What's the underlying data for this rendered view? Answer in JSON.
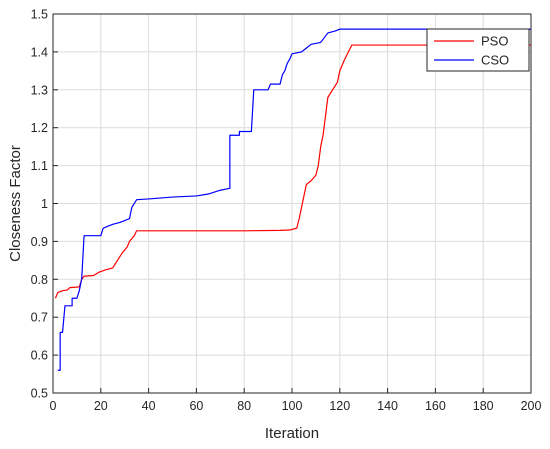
{
  "chart_data": {
    "type": "line",
    "title": "",
    "xlabel": "Iteration",
    "ylabel": "Closeness Factor",
    "xlim": [
      0,
      200
    ],
    "ylim": [
      0.5,
      1.5
    ],
    "xticks": [
      0,
      20,
      40,
      60,
      80,
      100,
      120,
      140,
      160,
      180,
      200
    ],
    "yticks": [
      0.5,
      0.6,
      0.7,
      0.8,
      0.9,
      1,
      1.1,
      1.2,
      1.3,
      1.4,
      1.5
    ],
    "xtick_labels": [
      "0",
      "20",
      "40",
      "60",
      "80",
      "100",
      "120",
      "140",
      "160",
      "180",
      "200"
    ],
    "ytick_labels": [
      "0.5",
      "0.6",
      "0.7",
      "0.8",
      "0.9",
      "1",
      "1.1",
      "1.2",
      "1.3",
      "1.4",
      "1.5"
    ],
    "grid": true,
    "legend_position": "top-right",
    "series": [
      {
        "name": "PSO",
        "color": "#ff0000",
        "points": [
          [
            1,
            0.75
          ],
          [
            2,
            0.765
          ],
          [
            4,
            0.77
          ],
          [
            6,
            0.772
          ],
          [
            7,
            0.778
          ],
          [
            11,
            0.78
          ],
          [
            12,
            0.8
          ],
          [
            13,
            0.808
          ],
          [
            17,
            0.81
          ],
          [
            19,
            0.818
          ],
          [
            22,
            0.825
          ],
          [
            25,
            0.83
          ],
          [
            27,
            0.85
          ],
          [
            29,
            0.87
          ],
          [
            31,
            0.885
          ],
          [
            32,
            0.9
          ],
          [
            34,
            0.915
          ],
          [
            35,
            0.928
          ],
          [
            60,
            0.928
          ],
          [
            80,
            0.928
          ],
          [
            95,
            0.929
          ],
          [
            99,
            0.93
          ],
          [
            102,
            0.935
          ],
          [
            103,
            0.96
          ],
          [
            104,
            0.99
          ],
          [
            105,
            1.02
          ],
          [
            106,
            1.05
          ],
          [
            108,
            1.06
          ],
          [
            110,
            1.075
          ],
          [
            111,
            1.1
          ],
          [
            112,
            1.15
          ],
          [
            113,
            1.18
          ],
          [
            114,
            1.23
          ],
          [
            115,
            1.28
          ],
          [
            117,
            1.3
          ],
          [
            119,
            1.32
          ],
          [
            120,
            1.35
          ],
          [
            122,
            1.38
          ],
          [
            124,
            1.405
          ],
          [
            125,
            1.418
          ],
          [
            140,
            1.418
          ],
          [
            200,
            1.418
          ]
        ]
      },
      {
        "name": "CSO",
        "color": "#0000ff",
        "points": [
          [
            2,
            0.56
          ],
          [
            3,
            0.56
          ],
          [
            3,
            0.66
          ],
          [
            4,
            0.66
          ],
          [
            5,
            0.73
          ],
          [
            8,
            0.73
          ],
          [
            8,
            0.75
          ],
          [
            10,
            0.75
          ],
          [
            11,
            0.77
          ],
          [
            12,
            0.8
          ],
          [
            13,
            0.915
          ],
          [
            20,
            0.915
          ],
          [
            21,
            0.935
          ],
          [
            23,
            0.94
          ],
          [
            25,
            0.945
          ],
          [
            28,
            0.95
          ],
          [
            30,
            0.955
          ],
          [
            32,
            0.96
          ],
          [
            33,
            0.99
          ],
          [
            35,
            1.01
          ],
          [
            40,
            1.012
          ],
          [
            50,
            1.017
          ],
          [
            60,
            1.02
          ],
          [
            65,
            1.025
          ],
          [
            70,
            1.035
          ],
          [
            74,
            1.04
          ],
          [
            74,
            1.18
          ],
          [
            78,
            1.18
          ],
          [
            78,
            1.19
          ],
          [
            83,
            1.19
          ],
          [
            84,
            1.3
          ],
          [
            90,
            1.3
          ],
          [
            91,
            1.315
          ],
          [
            95,
            1.315
          ],
          [
            96,
            1.34
          ],
          [
            97,
            1.35
          ],
          [
            98,
            1.37
          ],
          [
            99,
            1.38
          ],
          [
            100,
            1.395
          ],
          [
            104,
            1.4
          ],
          [
            106,
            1.41
          ],
          [
            108,
            1.42
          ],
          [
            112,
            1.425
          ],
          [
            115,
            1.45
          ],
          [
            118,
            1.455
          ],
          [
            120,
            1.46
          ],
          [
            200,
            1.46
          ]
        ]
      }
    ]
  }
}
